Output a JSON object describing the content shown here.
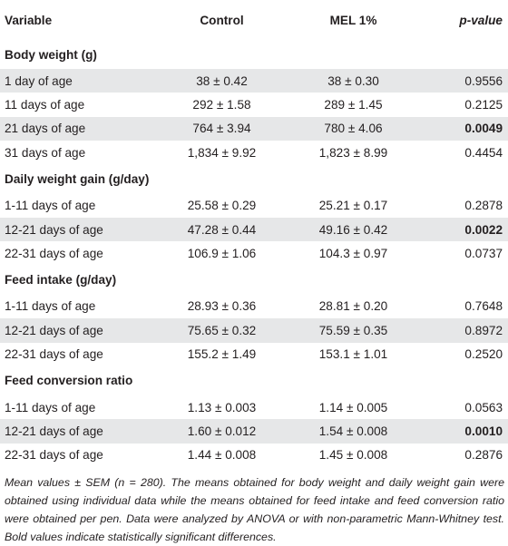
{
  "headers": {
    "variable": "Variable",
    "control": "Control",
    "mel": "MEL 1%",
    "pvalue": "p-value"
  },
  "sections": [
    {
      "title": "Body weight (g)",
      "rows": [
        {
          "label": "1 day of age",
          "control": "38 ± 0.42",
          "mel": "38 ± 0.30",
          "p": "0.9556",
          "bold": false
        },
        {
          "label": "11 days of age",
          "control": "292 ± 1.58",
          "mel": "289 ± 1.45",
          "p": "0.2125",
          "bold": false
        },
        {
          "label": "21 days of age",
          "control": "764 ± 3.94",
          "mel": "780 ± 4.06",
          "p": "0.0049",
          "bold": true
        },
        {
          "label": "31 days of age",
          "control": "1,834 ± 9.92",
          "mel": "1,823 ± 8.99",
          "p": "0.4454",
          "bold": false
        }
      ]
    },
    {
      "title": "Daily weight gain (g/day)",
      "rows": [
        {
          "label": "1-11 days of age",
          "control": "25.58 ± 0.29",
          "mel": "25.21 ± 0.17",
          "p": "0.2878",
          "bold": false
        },
        {
          "label": "12-21 days of age",
          "control": "47.28 ± 0.44",
          "mel": "49.16 ± 0.42",
          "p": "0.0022",
          "bold": true
        },
        {
          "label": "22-31 days of age",
          "control": "106.9 ± 1.06",
          "mel": "104.3 ± 0.97",
          "p": "0.0737",
          "bold": false
        }
      ]
    },
    {
      "title": "Feed intake (g/day)",
      "rows": [
        {
          "label": "1-11 days of age",
          "control": "28.93 ± 0.36",
          "mel": "28.81 ± 0.20",
          "p": "0.7648",
          "bold": false
        },
        {
          "label": "12-21 days of age",
          "control": "75.65 ± 0.32",
          "mel": "75.59 ± 0.35",
          "p": "0.8972",
          "bold": false
        },
        {
          "label": "22-31 days of age",
          "control": "155.2 ± 1.49",
          "mel": "153.1 ± 1.01",
          "p": "0.2520",
          "bold": false
        }
      ]
    },
    {
      "title": "Feed conversion ratio",
      "rows": [
        {
          "label": "1-11 days of age",
          "control": "1.13 ± 0.003",
          "mel": "1.14 ± 0.005",
          "p": "0.0563",
          "bold": false
        },
        {
          "label": "12-21 days of age",
          "control": "1.60 ± 0.012",
          "mel": "1.54 ± 0.008",
          "p": "0.0010",
          "bold": true
        },
        {
          "label": "22-31 days of age",
          "control": "1.44 ± 0.008",
          "mel": "1.45 ± 0.008",
          "p": "0.2876",
          "bold": false
        }
      ]
    }
  ],
  "footnote": "Mean values ± SEM (n = 280). The means obtained for body weight and daily weight gain were obtained using individual data while the means obtained for feed intake and feed conversion ratio were obtained per pen. Data were analyzed by ANOVA or with non-parametric Mann-Whitney test. Bold values indicate statistically significant differences.",
  "colors": {
    "header_bg": "#ffffff",
    "shade_row": "#e6e7e8",
    "text": "#231f20"
  }
}
